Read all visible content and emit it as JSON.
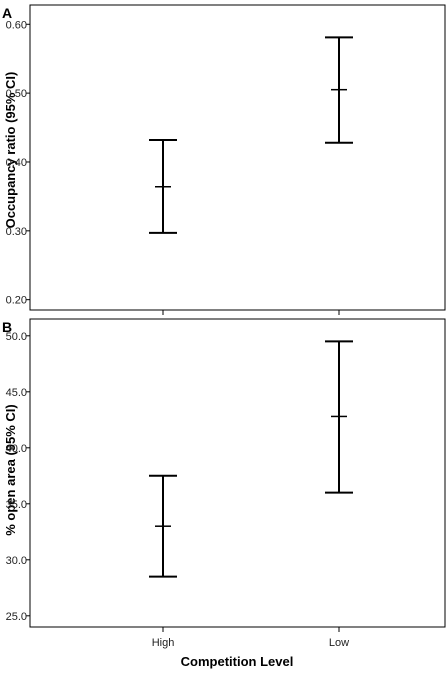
{
  "chart_data": [
    {
      "type": "errorbar",
      "panel_label": "A",
      "categories": [
        "High",
        "Low"
      ],
      "series": [
        {
          "values": [
            0.364,
            0.505
          ],
          "lower": [
            0.297,
            0.428
          ],
          "upper": [
            0.432,
            0.581
          ]
        }
      ],
      "ylabel": "Occupancy ratio (95% CI)",
      "xlabel": "",
      "ylim": [
        0.185,
        0.628
      ],
      "yticks": [
        "0.20",
        "0.30",
        "0.40",
        "0.50",
        "0.60"
      ],
      "show_x_tick_labels": false,
      "grid": false
    },
    {
      "type": "errorbar",
      "panel_label": "B",
      "categories": [
        "High",
        "Low"
      ],
      "series": [
        {
          "values": [
            33.0,
            42.8
          ],
          "lower": [
            28.5,
            36.0
          ],
          "upper": [
            37.5,
            49.5
          ]
        }
      ],
      "ylabel": "% open area (95% CI)",
      "xlabel": "Competition Level",
      "ylim": [
        24.0,
        51.5
      ],
      "yticks": [
        "25.0",
        "30.0",
        "35.0",
        "40.0",
        "45.0",
        "50.0"
      ],
      "show_x_tick_labels": true,
      "grid": false
    }
  ],
  "colors": {
    "bars": "#000000",
    "frame": "#000000",
    "background": "#ffffff"
  }
}
